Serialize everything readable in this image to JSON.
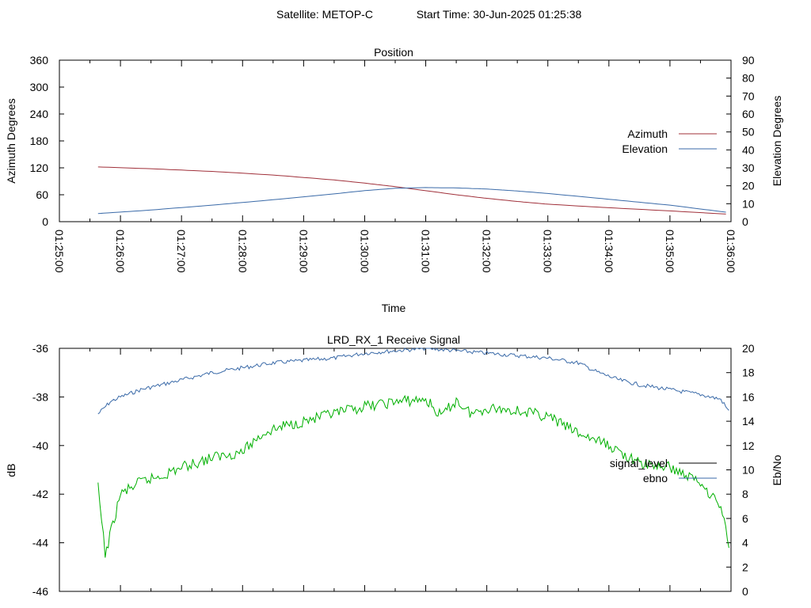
{
  "header": {
    "satellite": "Satellite: METOP-C",
    "start_time": "Start Time: 30-Jun-2025 01:25:38"
  },
  "chart_data": [
    {
      "type": "line",
      "title": "Position",
      "xlabel": "Time",
      "ylabel": "Azimuth Degrees",
      "y2label": "Elevation Degrees",
      "xlim": [
        "01:25:00",
        "01:36:00"
      ],
      "x_ticks": [
        "01:25:00",
        "01:26:00",
        "01:27:00",
        "01:28:00",
        "01:29:00",
        "01:30:00",
        "01:31:00",
        "01:32:00",
        "01:33:00",
        "01:34:00",
        "01:35:00",
        "01:36:00"
      ],
      "ylim": [
        0,
        360
      ],
      "y_ticks": [
        "0",
        "60",
        "120",
        "180",
        "240",
        "300",
        "360"
      ],
      "y2lim": [
        0,
        90
      ],
      "y2_ticks": [
        "0",
        "10",
        "20",
        "30",
        "40",
        "50",
        "60",
        "70",
        "80",
        "90"
      ],
      "legend_position": "right",
      "series": [
        {
          "name": "Azimuth",
          "axis": "y",
          "color": "#a0303a",
          "x": [
            "01:25:38",
            "01:26:30",
            "01:27:30",
            "01:28:30",
            "01:29:30",
            "01:30:00",
            "01:30:30",
            "01:31:00",
            "01:31:30",
            "01:32:00",
            "01:32:30",
            "01:33:00",
            "01:34:00",
            "01:35:00",
            "01:35:55"
          ],
          "values": [
            122,
            118,
            112,
            104,
            93,
            86,
            78,
            69,
            60,
            52,
            45,
            39,
            31,
            24,
            17
          ]
        },
        {
          "name": "Elevation",
          "axis": "y2",
          "color": "#3a6aa8",
          "x": [
            "01:25:38",
            "01:26:30",
            "01:27:30",
            "01:28:30",
            "01:29:30",
            "01:30:00",
            "01:30:30",
            "01:31:00",
            "01:31:30",
            "01:32:00",
            "01:32:30",
            "01:33:00",
            "01:34:00",
            "01:35:00",
            "01:35:55"
          ],
          "values": [
            4.5,
            6.5,
            9.2,
            12.2,
            15.5,
            17.3,
            18.6,
            19.0,
            18.8,
            18.2,
            17.1,
            15.7,
            12.5,
            9.2,
            5.3
          ]
        }
      ]
    },
    {
      "type": "line",
      "title": "LRD_RX_1 Receive Signal",
      "ylabel": "dB",
      "y2label": "Eb/No",
      "ylim": [
        -46,
        -36
      ],
      "y_ticks": [
        "-46",
        "-44",
        "-42",
        "-40",
        "-38",
        "-36"
      ],
      "y2lim": [
        0,
        20
      ],
      "y2_ticks": [
        "0",
        "2",
        "4",
        "6",
        "8",
        "10",
        "12",
        "14",
        "16",
        "18",
        "20"
      ],
      "legend_position": "right",
      "series": [
        {
          "name": "signal_level",
          "axis": "y",
          "color": "#3a6aa8",
          "x": [
            "01:25:38",
            "01:25:50",
            "01:26:00",
            "01:26:20",
            "01:26:40",
            "01:27:00",
            "01:27:30",
            "01:28:00",
            "01:28:30",
            "01:29:00",
            "01:29:30",
            "01:30:00",
            "01:30:30",
            "01:31:00",
            "01:31:30",
            "01:32:00",
            "01:32:30",
            "01:33:00",
            "01:33:30",
            "01:33:50",
            "01:34:10",
            "01:34:30",
            "01:35:00",
            "01:35:30",
            "01:35:50",
            "01:35:58"
          ],
          "values": [
            -38.7,
            -38.2,
            -38.0,
            -37.7,
            -37.5,
            -37.3,
            -37.0,
            -36.8,
            -36.6,
            -36.5,
            -36.4,
            -36.2,
            -36.1,
            -36.0,
            -36.1,
            -36.2,
            -36.3,
            -36.4,
            -36.6,
            -37.0,
            -37.3,
            -37.5,
            -37.7,
            -37.9,
            -38.1,
            -38.6
          ]
        },
        {
          "name": "ebno",
          "axis": "y2",
          "color": "#00b000",
          "x": [
            "01:25:38",
            "01:25:45",
            "01:26:00",
            "01:26:20",
            "01:26:40",
            "01:27:00",
            "01:27:30",
            "01:28:00",
            "01:28:20",
            "01:28:40",
            "01:29:00",
            "01:29:30",
            "01:30:00",
            "01:30:30",
            "01:31:00",
            "01:31:15",
            "01:31:30",
            "01:31:45",
            "01:32:00",
            "01:32:30",
            "01:33:00",
            "01:33:30",
            "01:34:00",
            "01:34:30",
            "01:35:00",
            "01:35:30",
            "01:35:50",
            "01:35:58"
          ],
          "values": [
            8.5,
            3.0,
            8.0,
            9.0,
            9.5,
            10.2,
            11.0,
            11.5,
            13.0,
            13.6,
            14.0,
            14.6,
            15.2,
            15.6,
            15.8,
            14.4,
            15.7,
            14.6,
            15.1,
            14.9,
            14.4,
            13.0,
            12.0,
            10.5,
            10.2,
            9.0,
            7.0,
            3.8
          ]
        }
      ]
    }
  ]
}
